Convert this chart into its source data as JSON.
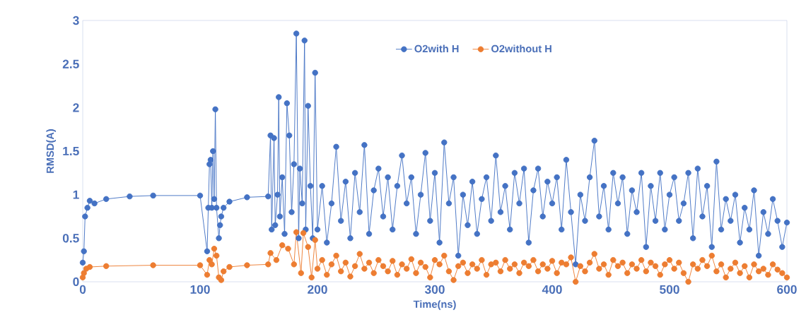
{
  "chart_data": {
    "type": "line",
    "xlabel": "Time(ns)",
    "ylabel": "RMSD(A)",
    "xlim": [
      0,
      600
    ],
    "ylim": [
      0,
      3
    ],
    "xticks": [
      0,
      100,
      200,
      300,
      400,
      500,
      600
    ],
    "yticks": [
      0,
      0.5,
      1,
      1.5,
      2,
      2.5,
      3
    ],
    "grid": false,
    "legend": "top",
    "marker": "circle",
    "line_style": "solid",
    "series": [
      {
        "name": "O2with  H",
        "color": "#4472c4",
        "x": [
          0,
          1,
          2,
          4,
          6,
          10,
          20,
          40,
          60,
          100,
          106,
          107,
          108,
          109,
          110,
          111,
          112,
          113,
          114,
          116,
          117,
          118,
          120,
          125,
          140,
          158,
          160,
          161,
          163,
          164,
          166,
          167,
          168,
          170,
          172,
          174,
          176,
          178,
          180,
          182,
          184,
          185,
          187,
          189,
          190,
          192,
          194,
          196,
          198,
          200,
          204,
          208,
          212,
          216,
          220,
          224,
          228,
          232,
          236,
          240,
          244,
          248,
          252,
          256,
          260,
          264,
          268,
          272,
          276,
          280,
          284,
          288,
          292,
          296,
          300,
          304,
          308,
          312,
          316,
          320,
          324,
          328,
          332,
          336,
          340,
          344,
          348,
          352,
          356,
          360,
          364,
          368,
          372,
          376,
          380,
          384,
          388,
          392,
          396,
          400,
          404,
          408,
          412,
          416,
          420,
          424,
          428,
          432,
          436,
          440,
          444,
          448,
          452,
          456,
          460,
          464,
          468,
          472,
          476,
          480,
          484,
          488,
          492,
          496,
          500,
          504,
          508,
          512,
          516,
          520,
          524,
          528,
          532,
          536,
          540,
          544,
          548,
          552,
          556,
          560,
          564,
          568,
          572,
          576,
          580,
          584,
          588,
          592,
          596,
          600
        ],
        "values": [
          0.22,
          0.35,
          0.75,
          0.85,
          0.93,
          0.9,
          0.95,
          0.98,
          0.99,
          0.99,
          0.35,
          0.85,
          1.35,
          1.4,
          0.85,
          1.5,
          0.95,
          1.98,
          0.85,
          0.5,
          0.65,
          0.75,
          0.85,
          0.92,
          0.97,
          0.98,
          1.68,
          0.6,
          1.65,
          0.65,
          1.0,
          2.12,
          0.75,
          1.2,
          0.55,
          2.05,
          1.68,
          0.8,
          1.35,
          2.85,
          0.5,
          1.3,
          0.9,
          2.77,
          0.6,
          2.02,
          1.1,
          0.5,
          2.4,
          0.6,
          1.1,
          0.45,
          0.9,
          1.55,
          0.7,
          1.15,
          0.5,
          1.25,
          0.8,
          1.57,
          0.55,
          1.05,
          1.3,
          0.75,
          1.2,
          0.6,
          1.1,
          1.45,
          0.9,
          1.2,
          0.55,
          1.0,
          1.48,
          0.7,
          1.25,
          0.45,
          1.6,
          0.9,
          1.2,
          0.3,
          1.0,
          0.65,
          1.15,
          0.55,
          0.95,
          1.2,
          0.7,
          1.45,
          0.8,
          1.1,
          0.6,
          1.25,
          0.9,
          1.3,
          0.45,
          1.05,
          1.3,
          0.75,
          1.15,
          0.9,
          1.2,
          0.6,
          1.4,
          0.8,
          0.2,
          1.0,
          0.7,
          1.2,
          1.62,
          0.75,
          1.1,
          0.6,
          1.25,
          0.9,
          1.2,
          0.55,
          1.05,
          0.8,
          1.25,
          0.4,
          1.1,
          0.7,
          1.25,
          0.6,
          1.0,
          1.2,
          0.7,
          0.9,
          1.25,
          0.5,
          1.3,
          0.75,
          1.1,
          0.4,
          1.38,
          0.6,
          0.95,
          0.7,
          1.0,
          0.45,
          0.85,
          0.6,
          1.05,
          0.3,
          0.8,
          0.55,
          0.95,
          0.7,
          0.4,
          0.68
        ]
      },
      {
        "name": "O2without H",
        "color": "#ed7d31",
        "x": [
          0,
          1,
          3,
          6,
          20,
          60,
          100,
          106,
          108,
          110,
          112,
          114,
          116,
          118,
          120,
          125,
          140,
          158,
          160,
          165,
          170,
          175,
          180,
          182,
          186,
          188,
          192,
          195,
          198,
          200,
          204,
          208,
          212,
          216,
          220,
          224,
          228,
          232,
          236,
          240,
          244,
          248,
          252,
          256,
          260,
          264,
          268,
          272,
          276,
          280,
          284,
          288,
          292,
          296,
          300,
          304,
          308,
          312,
          316,
          320,
          324,
          328,
          332,
          336,
          340,
          344,
          348,
          352,
          356,
          360,
          364,
          368,
          372,
          376,
          380,
          384,
          388,
          392,
          396,
          400,
          404,
          408,
          412,
          416,
          420,
          424,
          428,
          432,
          436,
          440,
          444,
          448,
          452,
          456,
          460,
          464,
          468,
          472,
          476,
          480,
          484,
          488,
          492,
          496,
          500,
          504,
          508,
          512,
          516,
          520,
          524,
          528,
          532,
          536,
          540,
          544,
          548,
          552,
          556,
          560,
          564,
          568,
          572,
          576,
          580,
          584,
          588,
          592,
          596,
          600
        ],
        "values": [
          0.05,
          0.1,
          0.15,
          0.17,
          0.18,
          0.19,
          0.19,
          0.08,
          0.25,
          0.2,
          0.38,
          0.3,
          0.05,
          0.02,
          0.12,
          0.17,
          0.19,
          0.2,
          0.33,
          0.25,
          0.42,
          0.38,
          0.2,
          0.57,
          0.1,
          0.56,
          0.4,
          0.05,
          0.48,
          0.15,
          0.25,
          0.08,
          0.2,
          0.3,
          0.12,
          0.22,
          0.06,
          0.18,
          0.32,
          0.15,
          0.22,
          0.1,
          0.25,
          0.18,
          0.12,
          0.24,
          0.08,
          0.2,
          0.15,
          0.26,
          0.1,
          0.22,
          0.17,
          0.05,
          0.25,
          0.2,
          0.3,
          0.12,
          0.02,
          0.18,
          0.22,
          0.1,
          0.2,
          0.15,
          0.25,
          0.08,
          0.2,
          0.22,
          0.12,
          0.25,
          0.15,
          0.2,
          0.1,
          0.22,
          0.18,
          0.25,
          0.12,
          0.2,
          0.15,
          0.24,
          0.1,
          0.22,
          0.2,
          0.28,
          0.0,
          0.18,
          0.12,
          0.22,
          0.32,
          0.15,
          0.2,
          0.08,
          0.25,
          0.18,
          0.22,
          0.1,
          0.2,
          0.15,
          0.25,
          0.12,
          0.22,
          0.18,
          0.08,
          0.2,
          0.25,
          0.15,
          0.22,
          0.1,
          0.0,
          0.2,
          0.15,
          0.25,
          0.18,
          0.3,
          0.12,
          0.2,
          0.05,
          0.15,
          0.22,
          0.1,
          0.18,
          0.05,
          0.2,
          0.12,
          0.15,
          0.08,
          0.2,
          0.14,
          0.1,
          0.05
        ]
      }
    ]
  }
}
